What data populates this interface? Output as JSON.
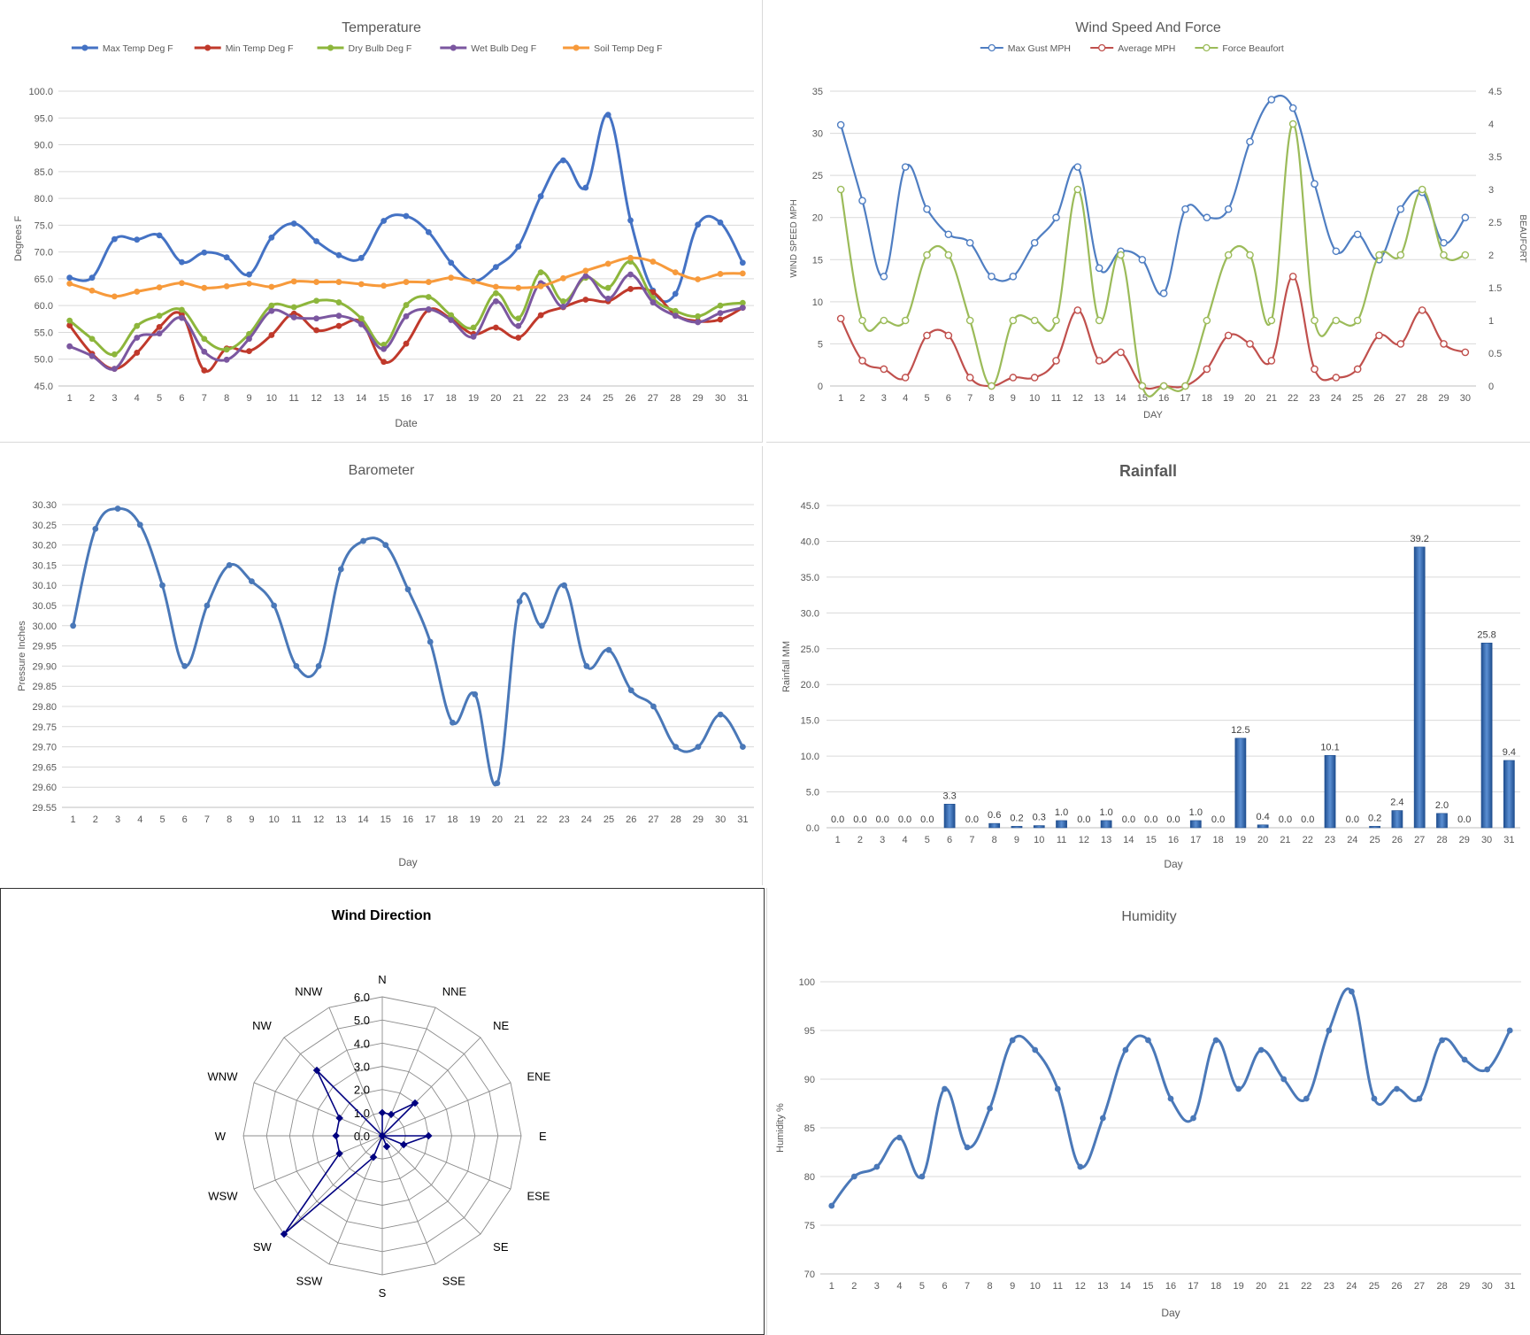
{
  "colors": {
    "max_temp": "#4472C4",
    "min_temp": "#C0392B",
    "dry_bulb": "#8DB63C",
    "wet_bulb": "#7B57A0",
    "soil_temp": "#F79A3B",
    "gust": "#4F7EC2",
    "avg_wind": "#C0504D",
    "beaufort": "#9BBB59",
    "line_blue": "#4A78B8",
    "rain_bar": "#2E63AE",
    "radar": "#000080",
    "grid": "#d9d9d9"
  },
  "chart_data": [
    {
      "id": "temperature",
      "type": "line",
      "title": "Temperature",
      "xlabel": "Date",
      "ylabel": "Degrees F",
      "ylim": [
        45,
        100
      ],
      "ytick_step": 5,
      "ytick_decimals": 1,
      "grid": true,
      "legend": "top",
      "categories": [
        "1",
        "2",
        "3",
        "4",
        "5",
        "6",
        "7",
        "8",
        "9",
        "10",
        "11",
        "12",
        "13",
        "14",
        "15",
        "16",
        "17",
        "18",
        "19",
        "20",
        "21",
        "22",
        "23",
        "24",
        "25",
        "26",
        "27",
        "28",
        "29",
        "30",
        "31"
      ],
      "series": [
        {
          "name": "Max Temp Deg F",
          "color": "#4472C4",
          "values": [
            65.2,
            65.2,
            72.4,
            72.3,
            73.1,
            68.1,
            69.9,
            69.0,
            65.8,
            72.7,
            75.3,
            72.0,
            69.4,
            68.9,
            75.8,
            76.7,
            73.7,
            68.0,
            64.6,
            67.2,
            71.0,
            80.4,
            87.1,
            82.0,
            95.6,
            75.9,
            62.8,
            62.2,
            75.1,
            75.5,
            68.0
          ]
        },
        {
          "name": "Min Temp Deg F",
          "color": "#C0392B",
          "values": [
            56.3,
            51.0,
            48.2,
            51.2,
            56.0,
            58.3,
            47.9,
            52.0,
            51.5,
            54.5,
            58.5,
            55.4,
            56.2,
            56.9,
            49.5,
            52.9,
            59.2,
            57.5,
            54.7,
            55.9,
            54.0,
            58.2,
            59.7,
            61.1,
            60.8,
            63.1,
            62.5,
            58.3,
            57.1,
            57.4,
            59.6
          ]
        },
        {
          "name": "Dry Bulb Deg F",
          "color": "#8DB63C",
          "values": [
            57.2,
            53.8,
            50.9,
            56.2,
            58.1,
            59.2,
            53.8,
            51.8,
            54.7,
            60.0,
            59.7,
            60.9,
            60.6,
            57.6,
            52.7,
            60.1,
            61.6,
            58.2,
            55.9,
            62.3,
            57.6,
            66.2,
            60.8,
            65.2,
            63.3,
            68.2,
            61.4,
            59.0,
            58.0,
            60.0,
            60.5
          ]
        },
        {
          "name": "Wet Bulb Deg F",
          "color": "#7B57A0",
          "values": [
            52.4,
            50.6,
            48.2,
            54.0,
            54.8,
            57.7,
            51.4,
            49.9,
            53.8,
            59.0,
            57.8,
            57.6,
            58.1,
            56.5,
            51.9,
            58.0,
            59.3,
            57.3,
            54.2,
            60.8,
            56.2,
            64.2,
            59.8,
            65.5,
            61.3,
            65.8,
            60.6,
            58.1,
            56.9,
            58.6,
            59.6
          ]
        },
        {
          "name": "Soil Temp Deg F",
          "color": "#F79A3B",
          "values": [
            64.1,
            62.8,
            61.7,
            62.6,
            63.4,
            64.2,
            63.3,
            63.6,
            64.1,
            63.5,
            64.5,
            64.4,
            64.4,
            64.0,
            63.7,
            64.4,
            64.4,
            65.2,
            64.5,
            63.5,
            63.3,
            63.6,
            65.1,
            66.5,
            67.8,
            68.9,
            68.2,
            66.2,
            64.9,
            65.9,
            66.0
          ]
        }
      ]
    },
    {
      "id": "wind",
      "type": "line",
      "title": "Wind Speed And Force",
      "xlabel": "DAY",
      "ylabel": "WIND SPEED MPH",
      "y2label": "BEAUFORT",
      "ylim": [
        0,
        35
      ],
      "ytick_step": 5,
      "y2lim": [
        0,
        4.5
      ],
      "y2tick_step": 0.5,
      "grid": true,
      "legend": "top",
      "categories": [
        "1",
        "2",
        "3",
        "4",
        "5",
        "6",
        "7",
        "8",
        "9",
        "10",
        "11",
        "12",
        "13",
        "14",
        "15",
        "16",
        "17",
        "18",
        "19",
        "20",
        "21",
        "22",
        "23",
        "24",
        "25",
        "26",
        "27",
        "28",
        "29",
        "30"
      ],
      "series": [
        {
          "name": "Max Gust MPH",
          "axis": "left",
          "color": "#4F7EC2",
          "values": [
            31,
            22,
            13,
            26,
            21,
            18,
            17,
            13,
            13,
            17,
            20,
            26,
            14,
            16,
            15,
            11,
            21,
            20,
            21,
            29,
            34,
            33,
            24,
            16,
            18,
            15,
            21,
            23,
            17,
            20
          ]
        },
        {
          "name": "Average MPH",
          "axis": "left",
          "color": "#C0504D",
          "values": [
            8,
            3,
            2,
            1,
            6,
            6,
            1,
            0,
            1,
            1,
            3,
            9,
            3,
            4,
            0,
            0,
            0,
            2,
            6,
            5,
            3,
            13,
            2,
            1,
            2,
            6,
            5,
            9,
            5,
            4
          ]
        },
        {
          "name": "Force Beaufort",
          "axis": "right",
          "color": "#9BBB59",
          "values": [
            3,
            1,
            1,
            1,
            2,
            2,
            1,
            0,
            1,
            1,
            1,
            3,
            1,
            2,
            0,
            0,
            0,
            1,
            2,
            2,
            1,
            4,
            1,
            1,
            1,
            2,
            2,
            3,
            2,
            2
          ]
        }
      ]
    },
    {
      "id": "barometer",
      "type": "line",
      "title": "Barometer",
      "xlabel": "Day",
      "ylabel": "Pressure Inches",
      "ylim": [
        29.55,
        30.3
      ],
      "ytick_step": 0.05,
      "ytick_decimals": 2,
      "grid": true,
      "categories": [
        "1",
        "2",
        "3",
        "4",
        "5",
        "6",
        "7",
        "8",
        "9",
        "10",
        "11",
        "12",
        "13",
        "14",
        "15",
        "16",
        "17",
        "18",
        "19",
        "20",
        "21",
        "22",
        "23",
        "24",
        "25",
        "26",
        "27",
        "28",
        "29",
        "30",
        "31"
      ],
      "series": [
        {
          "color": "#4A78B8",
          "values": [
            30.0,
            30.24,
            30.29,
            30.25,
            30.1,
            29.9,
            30.05,
            30.15,
            30.11,
            30.05,
            29.9,
            29.9,
            30.14,
            30.21,
            30.2,
            30.09,
            29.96,
            29.76,
            29.83,
            29.61,
            30.06,
            30.0,
            30.1,
            29.9,
            29.94,
            29.84,
            29.8,
            29.7,
            29.7,
            29.78,
            29.7
          ]
        }
      ]
    },
    {
      "id": "rainfall",
      "type": "bar",
      "title": "Rainfall",
      "xlabel": "Day",
      "ylabel": "Rainfall MM",
      "ylim": [
        0,
        45
      ],
      "ytick_step": 5,
      "ytick_decimals": 1,
      "grid": true,
      "categories": [
        "1",
        "2",
        "3",
        "4",
        "5",
        "6",
        "7",
        "8",
        "9",
        "10",
        "11",
        "12",
        "13",
        "14",
        "15",
        "16",
        "17",
        "18",
        "19",
        "20",
        "21",
        "22",
        "23",
        "24",
        "25",
        "26",
        "27",
        "28",
        "29",
        "30",
        "31"
      ],
      "values": [
        0.0,
        0.0,
        0.0,
        0.0,
        0.0,
        3.3,
        0.0,
        0.6,
        0.2,
        0.3,
        1.0,
        0.0,
        1.0,
        0.0,
        0.0,
        0.0,
        1.0,
        0.0,
        12.5,
        0.4,
        0.0,
        0.0,
        10.1,
        0.0,
        0.2,
        2.4,
        39.2,
        2.0,
        0.0,
        25.8,
        9.4
      ],
      "data_labels": [
        "0.0",
        "0.0",
        "0.0",
        "0.0",
        "0.0",
        "3.3",
        "0.0",
        "0.6",
        "0.2",
        "0.3",
        "1.0",
        "0.0",
        "1.0",
        "0.0",
        "0.0",
        "0.0",
        "1.0",
        "0.0",
        "12.5",
        "0.4",
        "0.0",
        "0.0",
        "10.1",
        "0.0",
        "0.2",
        "2.4",
        "39.2",
        "2.0",
        "0.0",
        "25.8",
        "9.4"
      ]
    },
    {
      "id": "wind_direction",
      "type": "radar",
      "title": "Wind Direction",
      "categories": [
        "N",
        "NNE",
        "NE",
        "ENE",
        "E",
        "ESE",
        "SE",
        "SSE",
        "S",
        "SSW",
        "SW",
        "WSW",
        "W",
        "WNW",
        "NW",
        "NNW"
      ],
      "rlim": [
        0,
        6
      ],
      "rtick_step": 1,
      "rtick_labels": [
        "0.0",
        "1.0",
        "2.0",
        "3.0",
        "4.0",
        "5.0",
        "6.0"
      ],
      "values": [
        1.0,
        1.0,
        2.0,
        0.0,
        2.0,
        1.0,
        0.0,
        0.5,
        0.0,
        1.0,
        6.0,
        2.0,
        2.0,
        2.0,
        4.0,
        0.0
      ]
    },
    {
      "id": "humidity",
      "type": "line",
      "title": "Humidity",
      "xlabel": "Day",
      "ylabel": "Humidity %",
      "ylim": [
        70,
        100
      ],
      "ytick_step": 5,
      "ytick_decimals": 0,
      "grid": true,
      "categories": [
        "1",
        "2",
        "3",
        "4",
        "5",
        "6",
        "7",
        "8",
        "9",
        "10",
        "11",
        "12",
        "13",
        "14",
        "15",
        "16",
        "17",
        "18",
        "19",
        "20",
        "21",
        "22",
        "23",
        "24",
        "25",
        "26",
        "27",
        "28",
        "29",
        "30",
        "31"
      ],
      "series": [
        {
          "color": "#4A78B8",
          "values": [
            77,
            80,
            81,
            84,
            80,
            89,
            83,
            87,
            94,
            93,
            89,
            81,
            86,
            93,
            94,
            88,
            86,
            94,
            89,
            93,
            90,
            88,
            95,
            99,
            88,
            89,
            88,
            94,
            92,
            91,
            95
          ]
        }
      ]
    }
  ]
}
